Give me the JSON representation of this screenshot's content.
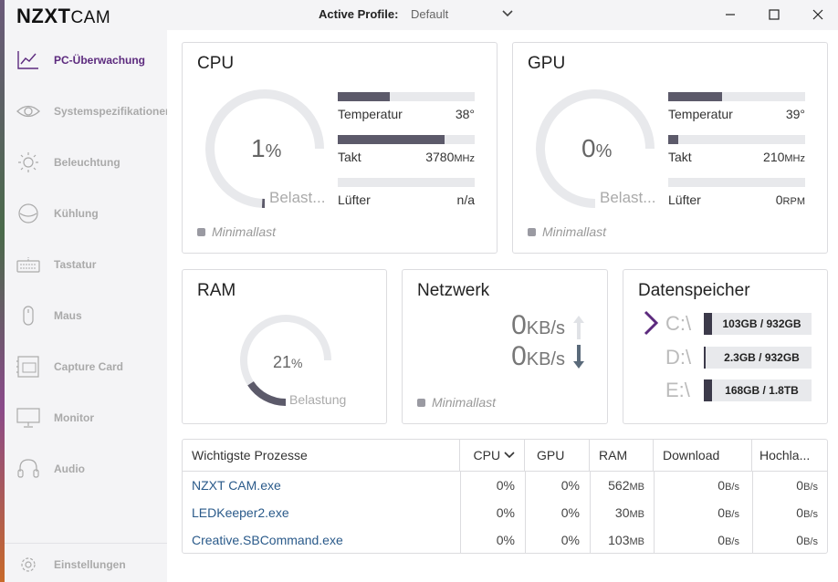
{
  "app": {
    "logo_text": "NZXT",
    "logo_suffix": "CAM",
    "profile_label": "Active Profile:",
    "profile_value": "Default"
  },
  "sidebar": {
    "items": [
      {
        "label": "PC-Überwachung",
        "icon": "line-chart-icon",
        "active": true
      },
      {
        "label": "Systemspezifikationen",
        "icon": "eye-icon"
      },
      {
        "label": "Beleuchtung",
        "icon": "sun-icon"
      },
      {
        "label": "Kühlung",
        "icon": "cooling-icon"
      },
      {
        "label": "Tastatur",
        "icon": "keyboard-icon"
      },
      {
        "label": "Maus",
        "icon": "mouse-icon"
      },
      {
        "label": "Capture Card",
        "icon": "capture-card-icon"
      },
      {
        "label": "Monitor",
        "icon": "monitor-icon"
      },
      {
        "label": "Audio",
        "icon": "headset-icon"
      }
    ],
    "settings_label": "Einstellungen"
  },
  "cpu": {
    "title": "CPU",
    "load_value": "1",
    "load_unit": "%",
    "load_fraction": 0.01,
    "load_label": "Belast...",
    "status": "Minimallast",
    "temp_label": "Temperatur",
    "temp_value": "38°",
    "temp_fraction": 0.38,
    "clock_label": "Takt",
    "clock_value": "3780",
    "clock_unit": "MHz",
    "clock_fraction": 0.78,
    "fan_label": "Lüfter",
    "fan_value": "n/a",
    "fan_fraction": 0
  },
  "gpu": {
    "title": "GPU",
    "load_value": "0",
    "load_unit": "%",
    "load_fraction": 0,
    "load_label": "Belast...",
    "status": "Minimallast",
    "temp_label": "Temperatur",
    "temp_value": "39°",
    "temp_fraction": 0.39,
    "clock_label": "Takt",
    "clock_value": "210",
    "clock_unit": "MHz",
    "clock_fraction": 0.07,
    "fan_label": "Lüfter",
    "fan_value": "0",
    "fan_unit": "RPM",
    "fan_fraction": 0
  },
  "ram": {
    "title": "RAM",
    "value": "21",
    "unit": "%",
    "fraction": 0.21,
    "label": "Belastung"
  },
  "network": {
    "title": "Netzwerk",
    "down_value": "0",
    "down_unit": "KB/s",
    "up_value": "0",
    "up_unit": "KB/s",
    "status": "Minimallast"
  },
  "storage": {
    "title": "Datenspeicher",
    "drives": [
      {
        "letter": "C:\\",
        "usage": "103GB / 932GB",
        "selected": true
      },
      {
        "letter": "D:\\",
        "usage": "2.3GB / 932GB"
      },
      {
        "letter": "E:\\",
        "usage": "168GB / 1.8TB"
      }
    ]
  },
  "processes": {
    "headers": [
      "Wichtigste Prozesse",
      "CPU",
      "GPU",
      "RAM",
      "Download",
      "Hochla..."
    ],
    "rows": [
      {
        "name": "NZXT CAM.exe",
        "cpu": "0%",
        "gpu": "0%",
        "ram": "562",
        "ram_unit": "MB",
        "down": "0",
        "down_unit": "B/s",
        "up": "0",
        "up_unit": "B/s"
      },
      {
        "name": "LEDKeeper2.exe",
        "cpu": "0%",
        "gpu": "0%",
        "ram": "30",
        "ram_unit": "MB",
        "down": "0",
        "down_unit": "B/s",
        "up": "0",
        "up_unit": "B/s"
      },
      {
        "name": "Creative.SBCommand.exe",
        "cpu": "0%",
        "gpu": "0%",
        "ram": "103",
        "ram_unit": "MB",
        "down": "0",
        "down_unit": "B/s",
        "up": "0",
        "up_unit": "B/s"
      }
    ]
  }
}
